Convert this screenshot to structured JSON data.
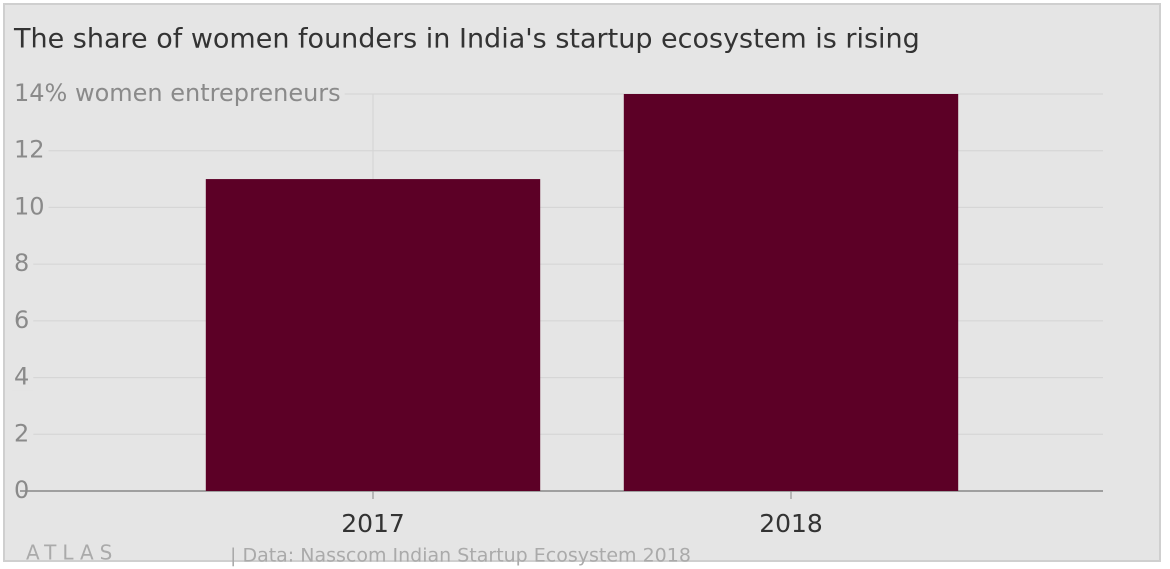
{
  "chart_data": {
    "type": "bar",
    "title": "The share of women founders in India's startup ecosystem is rising",
    "categories": [
      "2017",
      "2018"
    ],
    "values": [
      11,
      14
    ],
    "color": "#5c0026",
    "ylim": [
      0,
      14
    ],
    "yticks": [
      0,
      2,
      4,
      6,
      8,
      10,
      12,
      {
        "value": 14,
        "label": "14% women entrepreneurs"
      }
    ],
    "grid": true,
    "logo": "ATLAS",
    "source": "| Data: Nasscom Indian Startup Ecosystem 2018"
  }
}
